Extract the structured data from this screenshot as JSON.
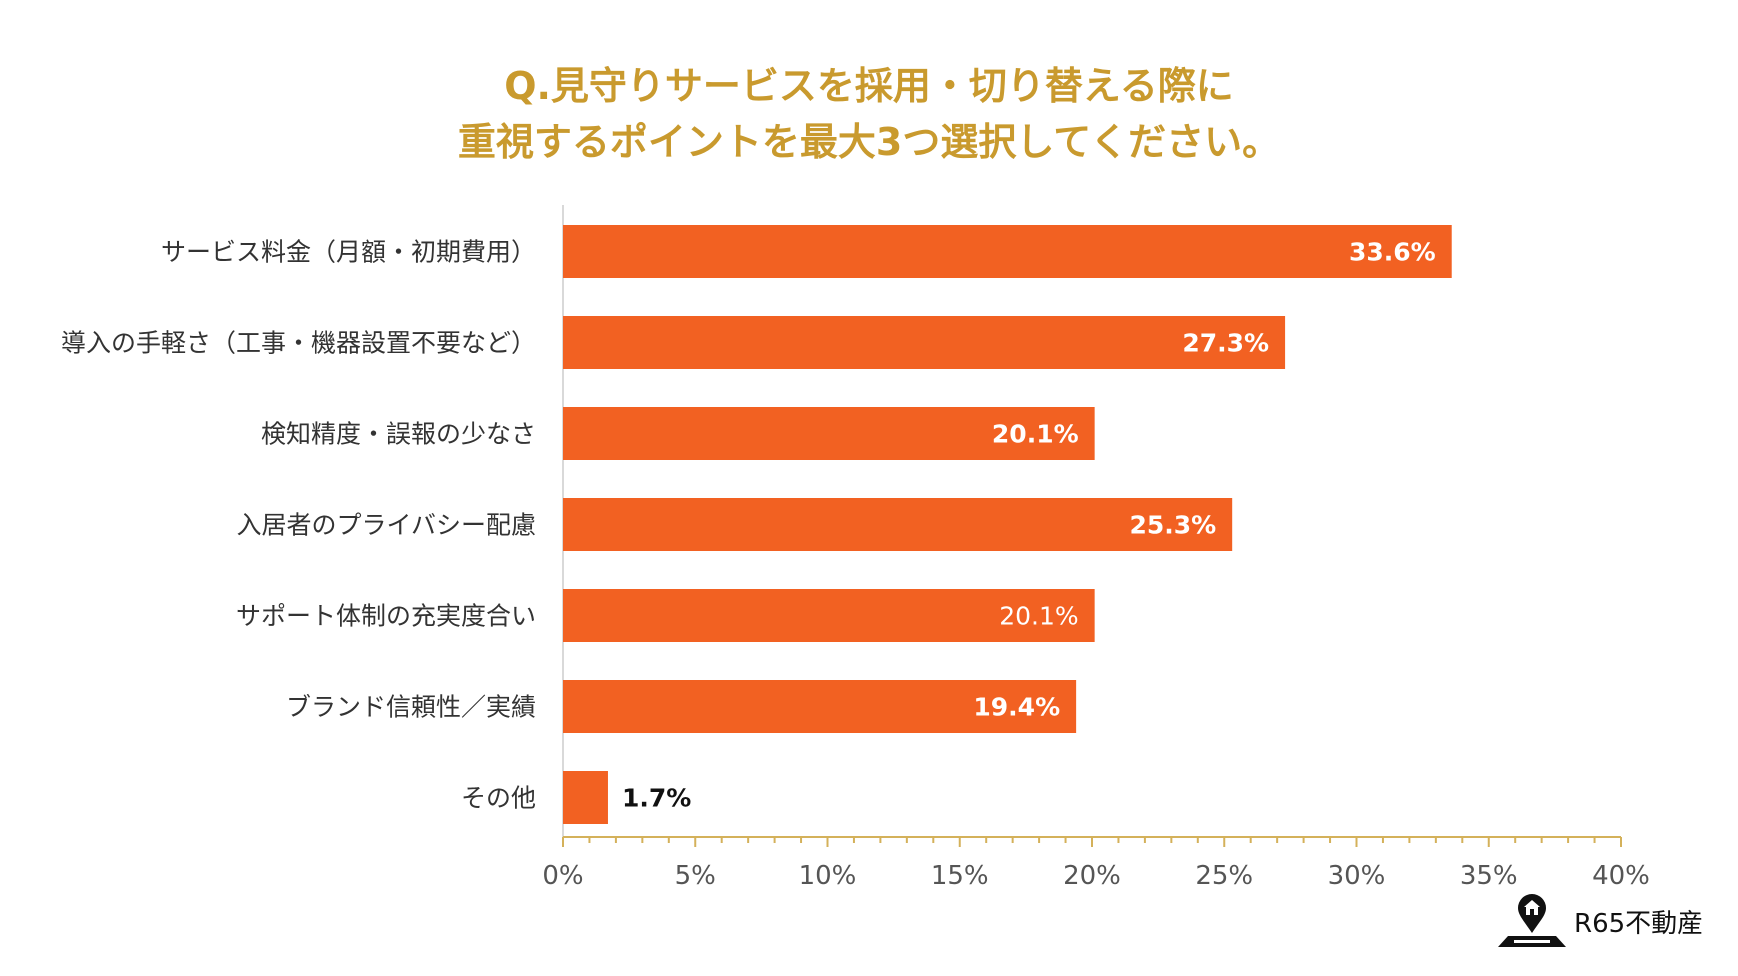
{
  "title": {
    "line1": "Q.見守りサービスを採用・切り替える際に",
    "line2": "重視するポイントを最大3つ選択してください。"
  },
  "colors": {
    "title": "#c99a2e",
    "bar": "#f26122",
    "axis": "#d4b15a"
  },
  "chart_data": {
    "type": "bar",
    "orientation": "horizontal",
    "title": "Q.見守りサービスを採用・切り替える際に重視するポイントを最大3つ選択してください。",
    "categories": [
      "サービス料金（月額・初期費用）",
      "導入の手軽さ（工事・機器設置不要など）",
      "検知精度・誤報の少なさ",
      "入居者のプライバシー配慮",
      "サポート体制の充実度合い",
      "ブランド信頼性／実績",
      "その他"
    ],
    "values": [
      33.6,
      27.3,
      20.1,
      25.3,
      20.1,
      19.4,
      1.7
    ],
    "value_labels": [
      "33.6%",
      "27.3%",
      "20.1%",
      "25.3%",
      "20.1%",
      "19.4%",
      "1.7%"
    ],
    "xlim": [
      0,
      40
    ],
    "x_ticks": [
      0,
      5,
      10,
      15,
      20,
      25,
      30,
      35,
      40
    ],
    "x_tick_labels": [
      "0%",
      "5%",
      "10%",
      "15%",
      "20%",
      "25%",
      "30%",
      "35%",
      "40%"
    ],
    "grid": false
  },
  "brand": {
    "name": "R65不動産",
    "icon": "map-pin-house-icon"
  }
}
